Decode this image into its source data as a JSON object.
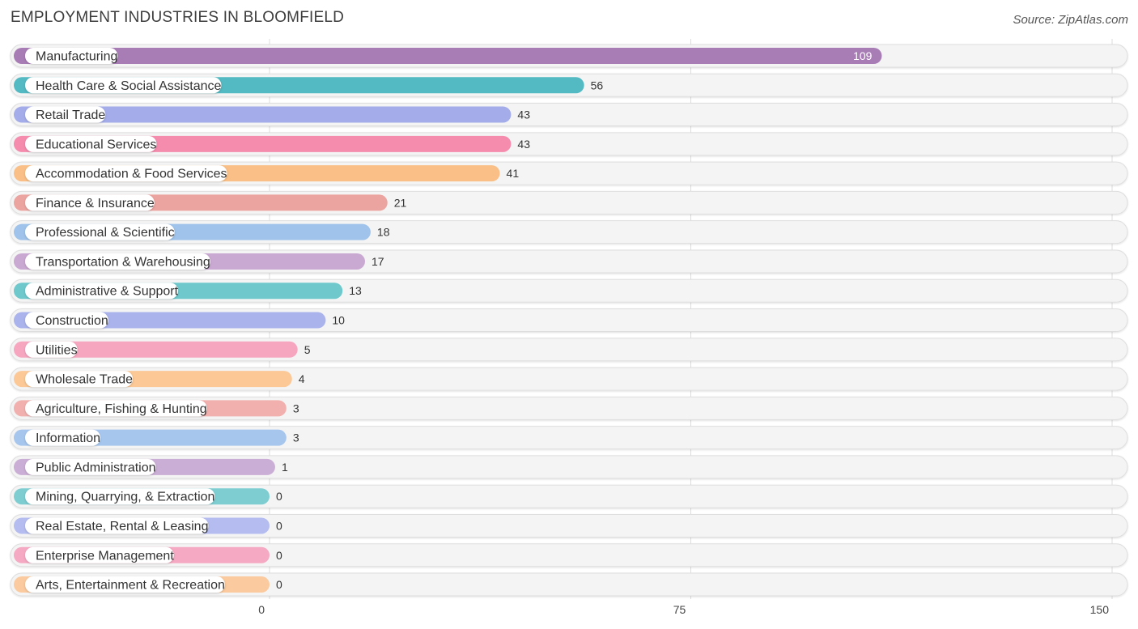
{
  "title": "EMPLOYMENT INDUSTRIES IN BLOOMFIELD",
  "source": "Source: ZipAtlas.com",
  "chart_data": {
    "type": "bar",
    "orientation": "horizontal",
    "title": "EMPLOYMENT INDUSTRIES IN BLOOMFIELD",
    "xlim": [
      0,
      150
    ],
    "xticks": [
      "0",
      "75",
      "150"
    ],
    "grid": true,
    "categories": [
      "Manufacturing",
      "Health Care & Social Assistance",
      "Retail Trade",
      "Educational Services",
      "Accommodation & Food Services",
      "Finance & Insurance",
      "Professional & Scientific",
      "Transportation & Warehousing",
      "Administrative & Support",
      "Construction",
      "Utilities",
      "Wholesale Trade",
      "Agriculture, Fishing & Hunting",
      "Information",
      "Public Administration",
      "Mining, Quarrying, & Extraction",
      "Real Estate, Rental & Leasing",
      "Enterprise Management",
      "Arts, Entertainment & Recreation"
    ],
    "values": [
      109,
      56,
      43,
      43,
      41,
      21,
      18,
      17,
      13,
      10,
      5,
      4,
      3,
      3,
      1,
      0,
      0,
      0,
      0
    ],
    "value_labels": [
      "109",
      "56",
      "43",
      "43",
      "41",
      "21",
      "18",
      "17",
      "13",
      "10",
      "5",
      "4",
      "3",
      "3",
      "1",
      "0",
      "0",
      "0",
      "0"
    ],
    "colors": [
      "#a87cb5",
      "#53b9c2",
      "#a4acea",
      "#f58cae",
      "#f9bf86",
      "#eca4a0",
      "#9fc3ea",
      "#c9a8d1",
      "#6ec8cc",
      "#aab3ec",
      "#f7a6c0",
      "#fbc896",
      "#f1b0ae",
      "#a6c6ee",
      "#caaed5",
      "#7dcdd1",
      "#b5bcf0",
      "#f6a9c2",
      "#fbca9e"
    ]
  }
}
